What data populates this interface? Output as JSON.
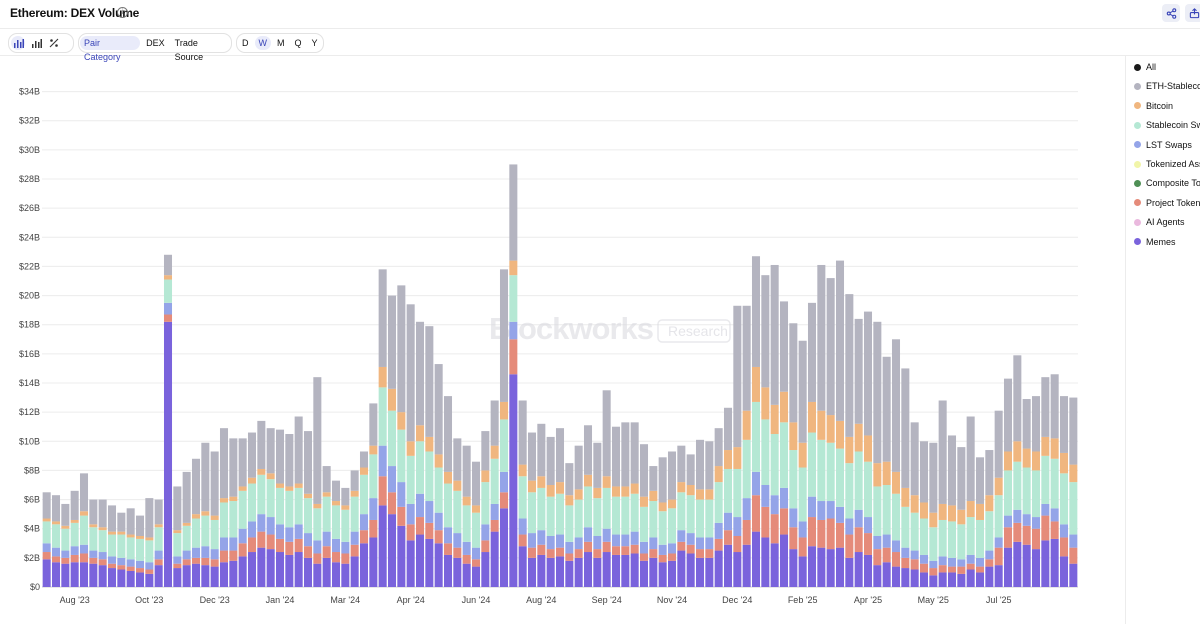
{
  "header": {
    "title": "Ethereum: DEX Volume",
    "info_icon": "info-icon",
    "share_icon": "share-icon",
    "export_icon": "export-icon"
  },
  "toolbar": {
    "chart_type_icons": [
      "bar-chart-icon",
      "stacked-bar-icon",
      "percent-icon"
    ],
    "group_by": [
      "Pair Category",
      "DEX",
      "Trade Source"
    ],
    "group_by_selected": "Pair Category",
    "intervals": [
      "D",
      "W",
      "M",
      "Q",
      "Y"
    ],
    "interval_selected": "W"
  },
  "watermark": {
    "brand": "Blockworks",
    "tag": "Research"
  },
  "legend": [
    {
      "label": "All",
      "color": "#1a1a1a"
    },
    {
      "label": "ETH-Stablecoin",
      "color": "#b4b4c0"
    },
    {
      "label": "Bitcoin",
      "color": "#f0b67f"
    },
    {
      "label": "Stablecoin Swaps",
      "color": "#b5e8d4"
    },
    {
      "label": "LST Swaps",
      "color": "#94a4e8"
    },
    {
      "label": "Tokenized Assets",
      "color": "#f1f5a9"
    },
    {
      "label": "Composite Tokens",
      "color": "#4f8f55"
    },
    {
      "label": "Project Tokens",
      "color": "#e58b7a"
    },
    {
      "label": "AI Agents",
      "color": "#eab9de"
    },
    {
      "label": "Memes",
      "color": "#7a63dc"
    }
  ],
  "chart_data": {
    "type": "bar",
    "stacked": true,
    "ylim": [
      0,
      35
    ],
    "y_ticks": [
      "$0",
      "$2B",
      "$4B",
      "$6B",
      "$8B",
      "$10B",
      "$12B",
      "$14B",
      "$16B",
      "$18B",
      "$20B",
      "$22B",
      "$24B",
      "$26B",
      "$28B",
      "$30B",
      "$32B",
      "$34B"
    ],
    "x_tick_labels": [
      "Aug '23",
      "Oct '23",
      "Dec '23",
      "Jan '24",
      "Mar '24",
      "Apr '24",
      "Jun '24",
      "Aug '24",
      "Sep '24",
      "Nov '24",
      "Dec '24",
      "Feb '25",
      "Apr '25",
      "May '25",
      "Jul '25"
    ],
    "x_tick_bar_index": [
      3,
      11,
      18,
      25,
      32,
      39,
      46,
      53,
      60,
      67,
      74,
      81,
      88,
      95,
      102
    ],
    "grid": true,
    "series_colors": [
      "#7a63dc",
      "#e58b7a",
      "#94a4e8",
      "#b5e8d4",
      "#f0b67f",
      "#b4b4c0"
    ],
    "series": [
      {
        "name": "Memes",
        "values": [
          1.9,
          1.7,
          1.6,
          1.7,
          1.7,
          1.6,
          1.5,
          1.3,
          1.2,
          1.1,
          1.0,
          0.9,
          1.5,
          18.2,
          1.3,
          1.5,
          1.6,
          1.5,
          1.4,
          1.7,
          1.8,
          2.1,
          2.4,
          2.7,
          2.6,
          2.4,
          2.2,
          2.4,
          2.0,
          1.6,
          2.0,
          1.7,
          1.6,
          2.1,
          3.0,
          3.4,
          5.6,
          5.0,
          4.2,
          3.2,
          3.6,
          3.3,
          3.0,
          2.2,
          2.0,
          1.6,
          1.4,
          2.4,
          3.8,
          5.4,
          14.6,
          2.8,
          2.0,
          2.2,
          2.0,
          2.1,
          1.8,
          2.0,
          2.4,
          2.0,
          2.4,
          2.2,
          2.2,
          2.3,
          1.8,
          2.0,
          1.7,
          1.8,
          2.5,
          2.3,
          2.0,
          2.0,
          2.5,
          2.9,
          2.4,
          2.9,
          3.8,
          3.4,
          3.0,
          3.6,
          2.6,
          2.1,
          2.8,
          2.7,
          2.6,
          2.7,
          2.0,
          2.4,
          2.2,
          1.5,
          1.7,
          1.4,
          1.3,
          1.2,
          1.0,
          0.8,
          1.0,
          1.0,
          0.9,
          1.2,
          1.0,
          1.4,
          1.5,
          2.7,
          3.1,
          2.9,
          2.6,
          3.2,
          3.3,
          2.1,
          1.6
        ]
      },
      {
        "name": "Project Tokens",
        "values": [
          0.5,
          0.4,
          0.4,
          0.5,
          0.6,
          0.4,
          0.4,
          0.3,
          0.3,
          0.3,
          0.3,
          0.3,
          0.4,
          0.5,
          0.3,
          0.4,
          0.4,
          0.5,
          0.5,
          0.8,
          0.7,
          0.9,
          1.0,
          1.1,
          1.0,
          0.9,
          0.9,
          0.9,
          0.8,
          0.7,
          0.8,
          0.7,
          0.7,
          0.8,
          0.9,
          1.2,
          2.0,
          1.5,
          1.3,
          1.1,
          1.2,
          1.1,
          0.9,
          0.8,
          0.7,
          0.6,
          0.5,
          0.8,
          0.8,
          1.1,
          2.4,
          0.8,
          0.7,
          0.7,
          0.6,
          0.6,
          0.5,
          0.6,
          0.7,
          0.6,
          0.7,
          0.6,
          0.6,
          0.6,
          0.5,
          0.6,
          0.5,
          0.5,
          0.6,
          0.6,
          0.6,
          0.6,
          0.8,
          1.0,
          1.1,
          1.7,
          2.5,
          2.1,
          2.0,
          1.8,
          1.5,
          1.3,
          2.0,
          1.9,
          2.1,
          1.7,
          1.6,
          1.7,
          1.5,
          1.1,
          1.0,
          1.0,
          0.7,
          0.7,
          0.6,
          0.5,
          0.5,
          0.4,
          0.5,
          0.4,
          0.4,
          0.5,
          1.2,
          1.4,
          1.3,
          1.3,
          1.4,
          1.7,
          1.2,
          1.3,
          1.1
        ]
      },
      {
        "name": "LST Swaps",
        "values": [
          0.6,
          0.6,
          0.5,
          0.6,
          0.6,
          0.5,
          0.5,
          0.5,
          0.5,
          0.5,
          0.5,
          0.5,
          0.6,
          0.8,
          0.5,
          0.6,
          0.7,
          0.8,
          0.7,
          0.9,
          0.9,
          1.0,
          1.1,
          1.2,
          1.2,
          1.0,
          1.0,
          1.0,
          0.9,
          0.9,
          1.0,
          0.9,
          0.8,
          0.9,
          1.1,
          1.5,
          2.1,
          1.8,
          1.7,
          1.4,
          1.6,
          1.5,
          1.2,
          1.1,
          1.0,
          0.9,
          0.8,
          1.1,
          1.1,
          1.4,
          1.2,
          1.1,
          1.0,
          1.0,
          0.9,
          0.9,
          0.8,
          0.8,
          1.0,
          0.9,
          0.9,
          0.8,
          0.8,
          0.9,
          0.8,
          0.8,
          0.7,
          0.7,
          0.8,
          0.8,
          0.8,
          0.8,
          1.1,
          1.2,
          1.3,
          1.5,
          1.6,
          1.5,
          1.3,
          1.4,
          1.3,
          1.1,
          1.4,
          1.3,
          1.2,
          1.1,
          1.1,
          1.2,
          1.1,
          0.9,
          0.9,
          0.8,
          0.7,
          0.6,
          0.6,
          0.5,
          0.6,
          0.6,
          0.5,
          0.6,
          0.6,
          0.6,
          0.7,
          0.8,
          0.9,
          0.8,
          0.8,
          0.8,
          0.9,
          0.9,
          0.9
        ]
      },
      {
        "name": "Stablecoin Swaps",
        "values": [
          1.5,
          1.6,
          1.5,
          1.6,
          2.0,
          1.6,
          1.5,
          1.5,
          1.6,
          1.5,
          1.5,
          1.5,
          1.6,
          1.6,
          1.6,
          1.7,
          2.0,
          2.1,
          2.0,
          2.4,
          2.5,
          2.6,
          2.6,
          2.7,
          2.6,
          2.5,
          2.5,
          2.5,
          2.4,
          2.2,
          2.4,
          2.3,
          2.2,
          2.4,
          2.7,
          3.0,
          4.0,
          3.8,
          3.6,
          3.3,
          3.6,
          3.4,
          3.1,
          3.0,
          2.9,
          2.5,
          2.4,
          2.9,
          3.1,
          3.6,
          3.2,
          2.9,
          2.8,
          2.9,
          2.7,
          2.8,
          2.5,
          2.6,
          2.8,
          2.6,
          2.8,
          2.6,
          2.6,
          2.6,
          2.4,
          2.5,
          2.3,
          2.4,
          2.6,
          2.6,
          2.6,
          2.6,
          2.8,
          3.0,
          3.3,
          4.0,
          4.8,
          4.5,
          4.2,
          4.5,
          4.0,
          3.7,
          4.4,
          4.2,
          4.0,
          4.0,
          3.8,
          4.0,
          3.8,
          3.4,
          3.4,
          3.2,
          2.8,
          2.6,
          2.5,
          2.3,
          2.5,
          2.5,
          2.4,
          2.6,
          2.6,
          2.7,
          2.9,
          3.1,
          3.3,
          3.2,
          3.2,
          3.3,
          3.4,
          3.5,
          3.6
        ]
      },
      {
        "name": "Bitcoin",
        "values": [
          0.2,
          0.2,
          0.2,
          0.2,
          0.3,
          0.2,
          0.2,
          0.2,
          0.2,
          0.2,
          0.2,
          0.2,
          0.2,
          0.3,
          0.2,
          0.2,
          0.3,
          0.3,
          0.3,
          0.3,
          0.3,
          0.3,
          0.4,
          0.4,
          0.4,
          0.3,
          0.3,
          0.3,
          0.3,
          0.3,
          0.3,
          0.3,
          0.3,
          0.4,
          0.5,
          0.6,
          1.4,
          1.5,
          1.2,
          1.0,
          1.1,
          1.0,
          0.9,
          0.8,
          0.7,
          0.6,
          0.5,
          0.8,
          0.9,
          1.2,
          1.0,
          0.8,
          0.8,
          0.8,
          0.8,
          0.8,
          0.7,
          0.7,
          0.8,
          0.7,
          0.8,
          0.7,
          0.7,
          0.7,
          0.7,
          0.7,
          0.6,
          0.6,
          0.7,
          0.7,
          0.7,
          0.7,
          1.1,
          1.3,
          1.5,
          2.0,
          2.4,
          2.2,
          2.0,
          2.1,
          1.9,
          1.7,
          2.1,
          2.0,
          1.9,
          1.9,
          1.8,
          1.9,
          1.8,
          1.6,
          1.6,
          1.5,
          1.3,
          1.2,
          1.1,
          1.0,
          1.1,
          1.1,
          1.0,
          1.1,
          1.1,
          1.1,
          1.2,
          1.3,
          1.4,
          1.3,
          1.3,
          1.3,
          1.4,
          1.4,
          1.2
        ]
      },
      {
        "name": "ETH-Stablecoin",
        "values": [
          1.8,
          1.8,
          1.5,
          2.0,
          2.6,
          1.7,
          1.9,
          1.8,
          1.3,
          1.8,
          1.4,
          2.7,
          1.7,
          1.4,
          3.0,
          3.5,
          3.8,
          4.7,
          4.4,
          4.8,
          4.0,
          3.3,
          3.1,
          3.3,
          3.1,
          3.7,
          3.6,
          4.6,
          4.3,
          8.7,
          1.8,
          1.4,
          1.2,
          1.4,
          1.1,
          2.9,
          6.7,
          6.4,
          8.7,
          9.4,
          7.1,
          7.6,
          6.2,
          5.2,
          2.9,
          3.5,
          3.0,
          2.7,
          3.1,
          9.1,
          6.6,
          4.4,
          3.3,
          3.6,
          3.3,
          3.7,
          2.2,
          3.0,
          3.4,
          3.1,
          5.9,
          4.1,
          4.4,
          4.2,
          3.6,
          1.7,
          3.1,
          3.3,
          2.5,
          2.1,
          3.4,
          3.3,
          2.6,
          2.9,
          9.7,
          7.2,
          7.6,
          7.7,
          9.6,
          6.2,
          6.8,
          7.0,
          6.8,
          10.0,
          9.4,
          11.0,
          9.8,
          7.2,
          8.5,
          9.7,
          7.2,
          9.1,
          8.2,
          5.0,
          4.2,
          4.8,
          7.1,
          4.8,
          4.3,
          5.8,
          3.2,
          3.1,
          4.6,
          5.0,
          5.9,
          3.4,
          3.8,
          4.1,
          4.4,
          3.9,
          4.6
        ]
      }
    ]
  }
}
